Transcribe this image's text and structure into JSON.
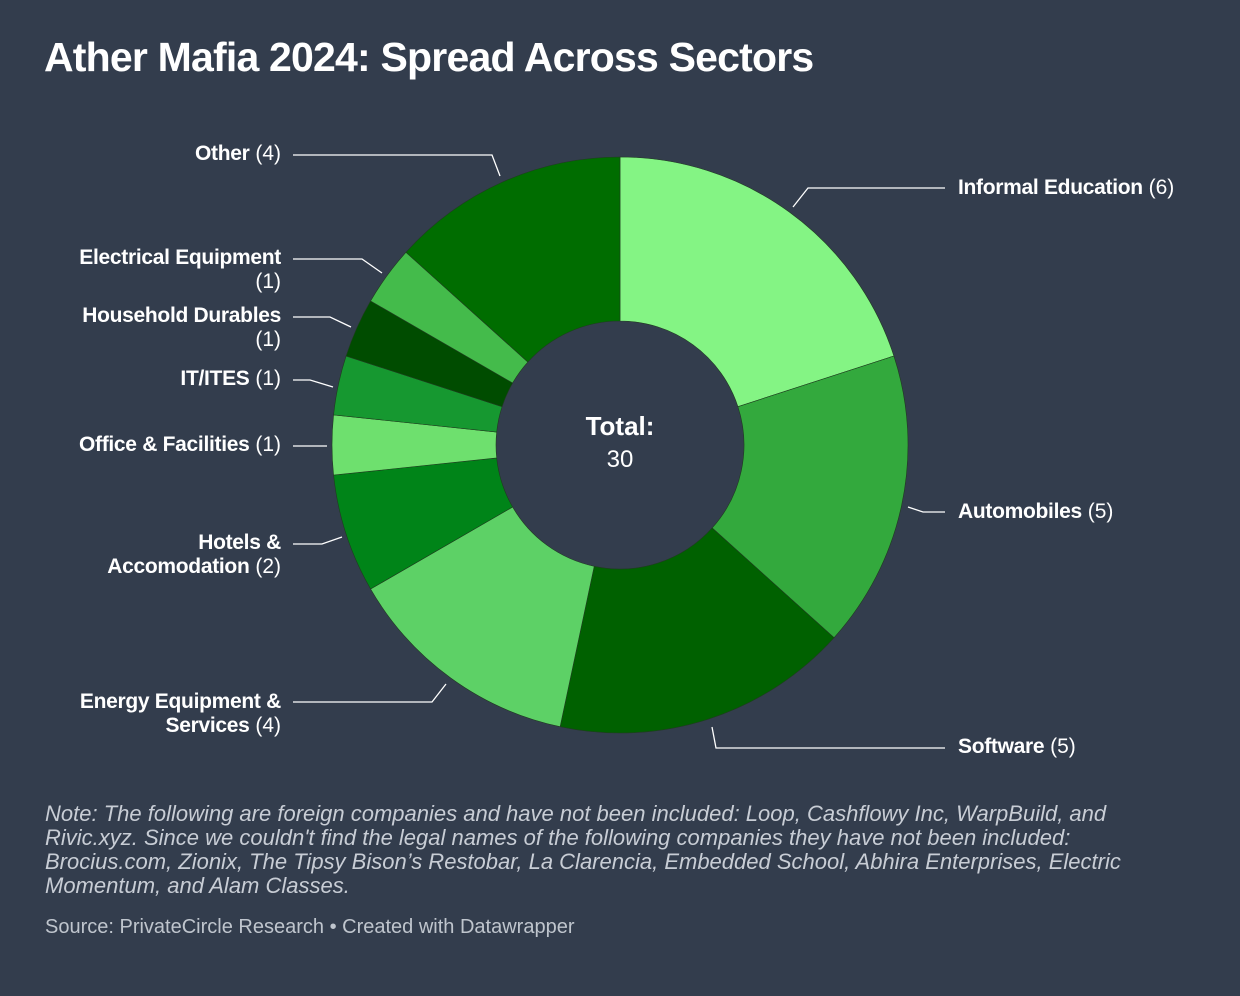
{
  "title": "Ather Mafia 2024: Spread Across Sectors",
  "note": "Note: The following are foreign companies and have not been included: Loop, Cashflowy Inc, WarpBuild, and Rivic.xyz. Since we couldn't find the legal names of the following companies they have not been included: Brocius.com, Zionix, The Tipsy Bison’s Restobar, La Clarencia, Embedded School, Abhira Enterprises, Electric Momentum, and Alam Classes.",
  "footer": {
    "source": "Source: PrivateCircle Research",
    "separator": "•",
    "credit": "Created with Datawrapper"
  },
  "chart_data": {
    "type": "pie",
    "variant": "donut",
    "center_label": "Total:",
    "center_value": "30",
    "slices": [
      {
        "label": "Informal Education",
        "value": 6,
        "color": "#84f484"
      },
      {
        "label": "Automobiles",
        "value": 5,
        "color": "#33a93d"
      },
      {
        "label": "Software",
        "value": 5,
        "color": "#006100"
      },
      {
        "label": "Energy Equipment & Services",
        "value": 4,
        "color": "#5dd166"
      },
      {
        "label": "Hotels & Accomodation",
        "value": 2,
        "color": "#008418"
      },
      {
        "label": "Office & Facilities",
        "value": 1,
        "color": "#6ee06e"
      },
      {
        "label": "IT/ITES",
        "value": 1,
        "color": "#169830"
      },
      {
        "label": "Household Durables",
        "value": 1,
        "color": "#004c00"
      },
      {
        "label": "Electrical Equipment",
        "value": 1,
        "color": "#44bb4b"
      },
      {
        "label": "Other",
        "value": 4,
        "color": "#006d00"
      }
    ]
  }
}
